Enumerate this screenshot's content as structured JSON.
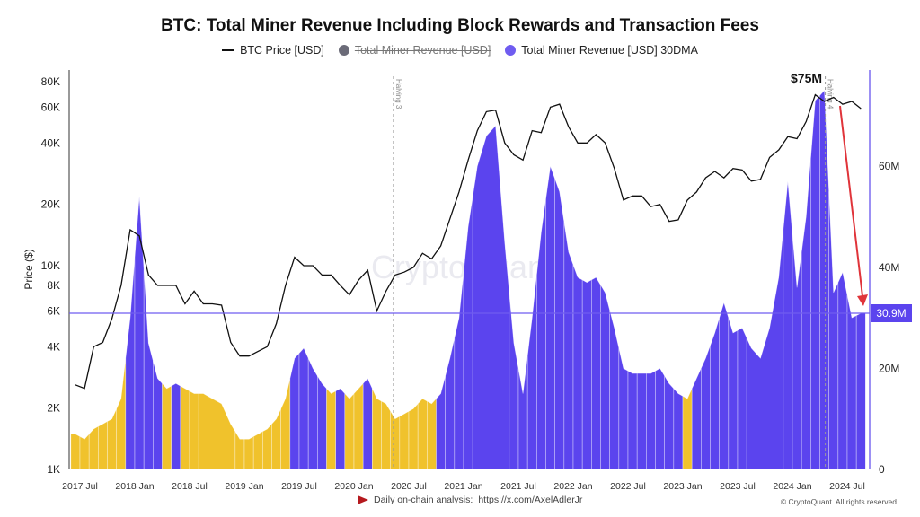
{
  "chart_data": {
    "type": "area",
    "title": "BTC: Total Miner Revenue Including Block Rewards and Transaction Fees",
    "legend": [
      {
        "label": "BTC Price [USD]",
        "color": "#111111",
        "kind": "line",
        "hidden": false
      },
      {
        "label": "Total Miner Revenue [USD]",
        "color": "#6b6b78",
        "kind": "dot",
        "hidden": true
      },
      {
        "label": "Total Miner Revenue [USD] 30DMA",
        "color": "#6f5cf0",
        "kind": "dot",
        "hidden": false
      }
    ],
    "ylabel": "Price ($)",
    "y_left_scale": "log",
    "y_left_ticks": [
      "1K",
      "2K",
      "4K",
      "6K",
      "8K",
      "10K",
      "20K",
      "40K",
      "60K",
      "80K"
    ],
    "y_left_tick_values": [
      1,
      2,
      4,
      6,
      8,
      10,
      20,
      40,
      60,
      80
    ],
    "y_left_range_k": [
      1,
      80
    ],
    "y_right_ticks": [
      "0",
      "20M",
      "40M",
      "60M"
    ],
    "y_right_tick_values": [
      0,
      20,
      40,
      60
    ],
    "y_right_range_m": [
      0,
      80
    ],
    "x_ticks": [
      "2017 Jul",
      "2018 Jan",
      "2018 Jul",
      "2019 Jan",
      "2019 Jul",
      "2020 Jan",
      "2020 Jul",
      "2021 Jan",
      "2021 Jul",
      "2022 Jan",
      "2022 Jul",
      "2023 Jan",
      "2023 Jul",
      "2024 Jan",
      "2024 Jul"
    ],
    "x_tick_values": [
      2017.5,
      2018,
      2018.5,
      2019,
      2019.5,
      2020,
      2020.5,
      2021,
      2021.5,
      2022,
      2022.5,
      2023,
      2023.5,
      2024,
      2024.5
    ],
    "colors": {
      "purple": "#5b44ee",
      "yellow": "#f0c22c",
      "price": "#111111",
      "arrow": "#e0343a",
      "axis_right": "#7b6cf0"
    },
    "halvings": [
      {
        "label": "Halving 3",
        "t": 2020.36
      },
      {
        "label": "Halving 4",
        "t": 2024.3
      }
    ],
    "annotations": {
      "peak_label": "$75M",
      "current_label": "30.9M",
      "current_value_m": 30.9
    },
    "watermark": "CryptoQuant",
    "series": {
      "months": [
        "2017-06",
        "2017-07",
        "2017-08",
        "2017-09",
        "2017-10",
        "2017-11",
        "2017-12",
        "2018-01",
        "2018-02",
        "2018-03",
        "2018-04",
        "2018-05",
        "2018-06",
        "2018-07",
        "2018-08",
        "2018-09",
        "2018-10",
        "2018-11",
        "2018-12",
        "2019-01",
        "2019-02",
        "2019-03",
        "2019-04",
        "2019-05",
        "2019-06",
        "2019-07",
        "2019-08",
        "2019-09",
        "2019-10",
        "2019-11",
        "2019-12",
        "2020-01",
        "2020-02",
        "2020-03",
        "2020-04",
        "2020-05",
        "2020-06",
        "2020-07",
        "2020-08",
        "2020-09",
        "2020-10",
        "2020-11",
        "2020-12",
        "2021-01",
        "2021-02",
        "2021-03",
        "2021-04",
        "2021-05",
        "2021-06",
        "2021-07",
        "2021-08",
        "2021-09",
        "2021-10",
        "2021-11",
        "2021-12",
        "2022-01",
        "2022-02",
        "2022-03",
        "2022-04",
        "2022-05",
        "2022-06",
        "2022-07",
        "2022-08",
        "2022-09",
        "2022-10",
        "2022-11",
        "2022-12",
        "2023-01",
        "2023-02",
        "2023-03",
        "2023-04",
        "2023-05",
        "2023-06",
        "2023-07",
        "2023-08",
        "2023-09",
        "2023-10",
        "2023-11",
        "2023-12",
        "2024-01",
        "2024-02",
        "2024-03",
        "2024-04",
        "2024-05",
        "2024-06",
        "2024-07",
        "2024-08"
      ],
      "btc_price_k": [
        2.6,
        2.5,
        4.0,
        4.2,
        5.5,
        8,
        15,
        14,
        9,
        8,
        8,
        8,
        6.5,
        7.5,
        6.5,
        6.5,
        6.4,
        4.2,
        3.6,
        3.6,
        3.8,
        4.0,
        5.2,
        8,
        11,
        10,
        10,
        9,
        9,
        8,
        7.2,
        8.5,
        9.5,
        6,
        7.5,
        9.0,
        9.3,
        9.8,
        11.5,
        10.8,
        12.5,
        17,
        23,
        33,
        46,
        57,
        58,
        40,
        35,
        33,
        46,
        45,
        60,
        62,
        48,
        40,
        40,
        44,
        40,
        30,
        21,
        22,
        22,
        19.5,
        20,
        16.5,
        16.8,
        21,
        23,
        27,
        29,
        27,
        30,
        29.5,
        26,
        26.5,
        34,
        37,
        43,
        42,
        51,
        69,
        64,
        67,
        62,
        64,
        59
      ],
      "revenue_30dma_m": [
        7,
        6,
        8,
        9,
        10,
        14,
        30,
        54,
        25,
        18,
        16,
        17,
        16,
        15,
        15,
        14,
        13,
        9,
        6,
        6,
        7,
        8,
        10,
        14,
        22,
        24,
        20,
        17,
        15,
        16,
        14,
        16,
        18,
        14,
        13,
        10,
        11,
        12,
        14,
        13,
        15,
        22,
        30,
        48,
        60,
        66,
        68,
        45,
        25,
        15,
        30,
        47,
        60,
        55,
        43,
        38,
        37,
        38,
        35,
        28,
        20,
        19,
        19,
        19,
        20,
        17,
        15,
        14,
        18,
        22,
        27,
        33,
        27,
        28,
        24,
        22,
        28,
        38,
        57,
        36,
        50,
        73,
        75,
        35,
        39,
        30,
        30.9
      ],
      "highlight_purple": [
        0,
        0,
        0,
        0,
        0,
        0,
        1,
        1,
        1,
        1,
        0,
        1,
        0,
        0,
        0,
        0,
        0,
        0,
        0,
        0,
        0,
        0,
        0,
        0,
        1,
        1,
        1,
        1,
        0,
        1,
        0,
        0,
        1,
        0,
        0,
        0,
        0,
        0,
        0,
        0,
        1,
        1,
        1,
        1,
        1,
        1,
        1,
        1,
        1,
        1,
        1,
        1,
        1,
        1,
        1,
        1,
        1,
        1,
        1,
        1,
        1,
        1,
        1,
        1,
        1,
        1,
        1,
        0,
        1,
        1,
        1,
        1,
        1,
        1,
        1,
        1,
        1,
        1,
        1,
        1,
        1,
        1,
        1,
        1,
        1,
        1,
        1
      ]
    }
  },
  "footer": {
    "text": "Daily on-chain analysis:",
    "link": "https://x.com/AxelAdlerJr",
    "copyright": "© CryptoQuant. All rights reserved"
  }
}
